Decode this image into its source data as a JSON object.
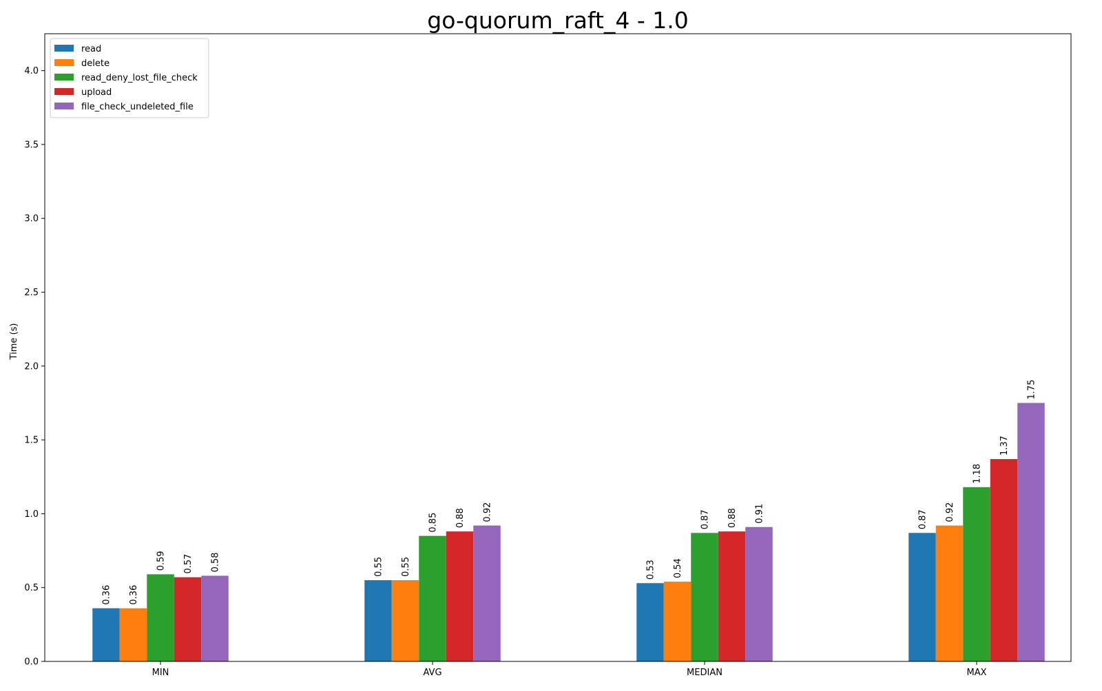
{
  "chart_data": {
    "type": "bar",
    "title": "go-quorum_raft_4 - 1.0",
    "xlabel": "",
    "ylabel": "Time (s)",
    "categories": [
      "MIN",
      "AVG",
      "MEDIAN",
      "MAX"
    ],
    "series": [
      {
        "name": "read",
        "color": "#1f77b4",
        "values": [
          0.36,
          0.55,
          0.53,
          0.87
        ],
        "labels": [
          "0.36",
          "0.55",
          "0.53",
          "0.87"
        ]
      },
      {
        "name": "delete",
        "color": "#ff7f0e",
        "values": [
          0.36,
          0.55,
          0.54,
          0.92
        ],
        "labels": [
          "0.36",
          "0.55",
          "0.54",
          "0.92"
        ]
      },
      {
        "name": "read_deny_lost_file_check",
        "color": "#2ca02c",
        "values": [
          0.59,
          0.85,
          0.87,
          1.18
        ],
        "labels": [
          "0.59",
          "0.85",
          "0.87",
          "1.18"
        ]
      },
      {
        "name": "upload",
        "color": "#d62728",
        "values": [
          0.57,
          0.88,
          0.88,
          1.37
        ],
        "labels": [
          "0.57",
          "0.88",
          "0.88",
          "1.37"
        ]
      },
      {
        "name": "file_check_undeleted_file",
        "color": "#9467bd",
        "values": [
          0.58,
          0.92,
          0.91,
          1.75
        ],
        "labels": [
          "0.58",
          "0.92",
          "0.91",
          "1.75"
        ]
      }
    ],
    "ylim": [
      0,
      4.25
    ],
    "yticks": [
      0.0,
      0.5,
      1.0,
      1.5,
      2.0,
      2.5,
      3.0,
      3.5,
      4.0
    ],
    "ytick_labels": [
      "0.0",
      "0.5",
      "1.0",
      "1.5",
      "2.0",
      "2.5",
      "3.0",
      "3.5",
      "4.0"
    ],
    "grid": false,
    "legend_position": "top-left",
    "data_labels": true,
    "data_label_rotation": "vertical"
  }
}
